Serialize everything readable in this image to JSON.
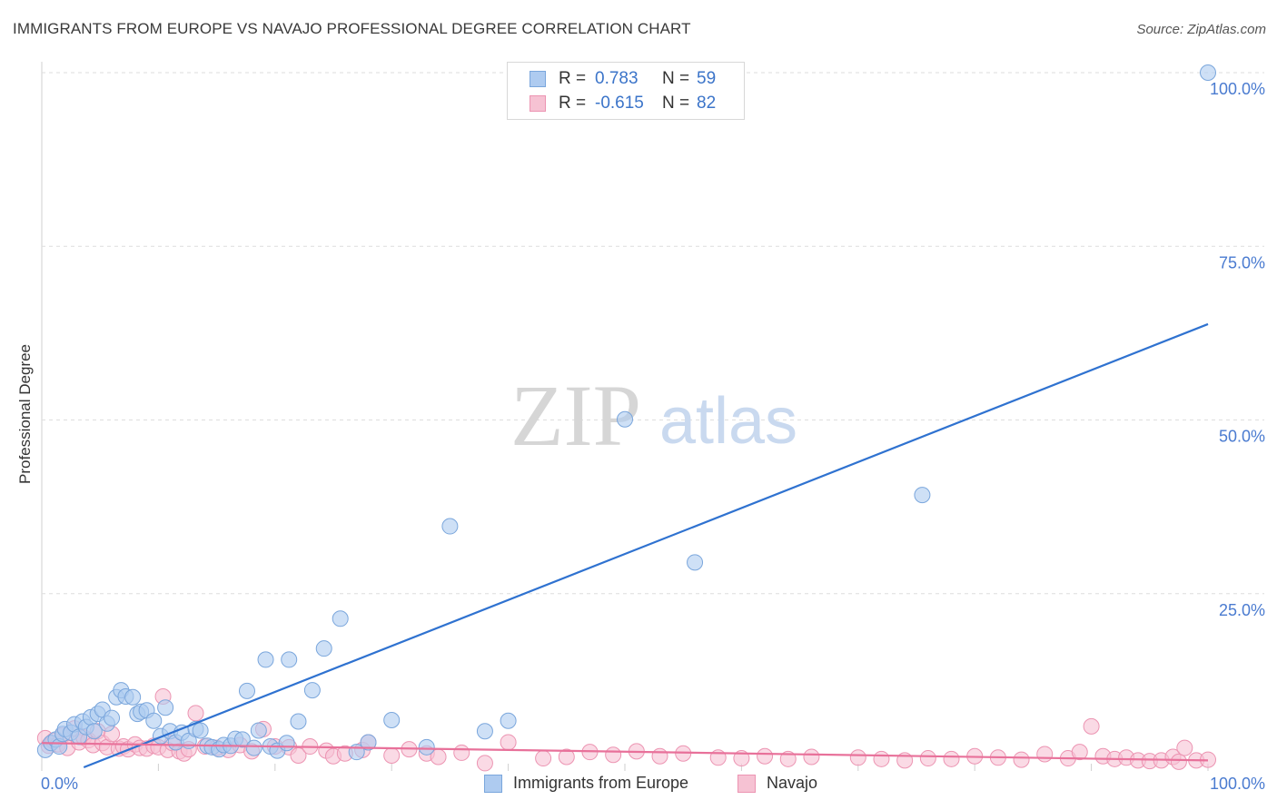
{
  "title": "IMMIGRANTS FROM EUROPE VS NAVAJO PROFESSIONAL DEGREE CORRELATION CHART",
  "source": "Source: ZipAtlas.com",
  "watermark": {
    "zip": "ZIP",
    "atlas": "atlas"
  },
  "legend": {
    "r_label": "R =",
    "n_label": "N =",
    "series": [
      {
        "name": "Immigrants from Europe",
        "r": "0.783",
        "n": "59"
      },
      {
        "name": "Navajo",
        "r": "-0.615",
        "n": "82"
      }
    ]
  },
  "colors": {
    "blue_fill": "#aecbf0",
    "blue_stroke": "#7aa6dc",
    "blue_line": "#2f72d0",
    "blue_text": "#3b74c9",
    "pink_fill": "#f6c2d3",
    "pink_stroke": "#ec94b2",
    "pink_line": "#e8719a",
    "grid": "#dedede",
    "axis_text": "#4a7bd0"
  },
  "chart_data": {
    "type": "scatter",
    "title": "IMMIGRANTS FROM EUROPE VS NAVAJO PROFESSIONAL DEGREE CORRELATION CHART",
    "xlabel": "",
    "ylabel": "Professional Degree",
    "xlim": [
      0,
      100
    ],
    "ylim": [
      0,
      100
    ],
    "x_tick_labels": [
      "0.0%",
      "100.0%"
    ],
    "y_tick_labels": [
      "25.0%",
      "50.0%",
      "75.0%",
      "100.0%"
    ],
    "y_ticks": [
      25,
      50,
      75,
      100
    ],
    "grid": true,
    "series": [
      {
        "name": "Immigrants from Europe",
        "r": 0.783,
        "n": 59,
        "trend": {
          "x": [
            3.6,
            100
          ],
          "y": [
            0,
            63.8
          ]
        },
        "points": [
          [
            0.3,
            2.5
          ],
          [
            0.8,
            3.5
          ],
          [
            1.2,
            4.0
          ],
          [
            1.5,
            3.0
          ],
          [
            1.8,
            4.8
          ],
          [
            2.0,
            5.5
          ],
          [
            2.5,
            5.0
          ],
          [
            2.8,
            6.2
          ],
          [
            3.2,
            4.4
          ],
          [
            3.5,
            6.6
          ],
          [
            3.8,
            5.8
          ],
          [
            4.2,
            7.2
          ],
          [
            4.5,
            5.2
          ],
          [
            4.8,
            7.7
          ],
          [
            5.2,
            8.3
          ],
          [
            5.6,
            6.3
          ],
          [
            6.0,
            7.1
          ],
          [
            6.4,
            10.1
          ],
          [
            6.8,
            11.1
          ],
          [
            7.2,
            10.2
          ],
          [
            7.8,
            10.1
          ],
          [
            8.2,
            7.7
          ],
          [
            8.5,
            8.0
          ],
          [
            9.0,
            8.2
          ],
          [
            9.6,
            6.7
          ],
          [
            10.2,
            4.5
          ],
          [
            10.6,
            8.6
          ],
          [
            11.0,
            5.2
          ],
          [
            11.5,
            3.6
          ],
          [
            12.0,
            5.0
          ],
          [
            12.6,
            3.8
          ],
          [
            13.2,
            5.5
          ],
          [
            13.6,
            5.3
          ],
          [
            14.2,
            3.1
          ],
          [
            14.6,
            2.9
          ],
          [
            15.2,
            2.6
          ],
          [
            15.6,
            3.2
          ],
          [
            16.2,
            3.1
          ],
          [
            16.6,
            4.1
          ],
          [
            17.2,
            4.0
          ],
          [
            17.6,
            11.0
          ],
          [
            18.2,
            2.8
          ],
          [
            18.6,
            5.3
          ],
          [
            19.2,
            15.5
          ],
          [
            19.6,
            3.0
          ],
          [
            20.2,
            2.4
          ],
          [
            21.0,
            3.5
          ],
          [
            21.2,
            15.5
          ],
          [
            22.0,
            6.6
          ],
          [
            23.2,
            11.1
          ],
          [
            24.2,
            17.1
          ],
          [
            25.6,
            21.4
          ],
          [
            27.0,
            2.2
          ],
          [
            28.0,
            3.6
          ],
          [
            30.0,
            6.8
          ],
          [
            33.0,
            2.9
          ],
          [
            35.0,
            34.7
          ],
          [
            38.0,
            5.2
          ],
          [
            40.0,
            6.7
          ],
          [
            50.0,
            50.1
          ],
          [
            56.0,
            29.5
          ],
          [
            75.5,
            39.2
          ],
          [
            100,
            100
          ]
        ]
      },
      {
        "name": "Navajo",
        "r": -0.615,
        "n": 82,
        "trend": {
          "x": [
            0,
            100
          ],
          "y": [
            3.5,
            1.0
          ]
        },
        "points": [
          [
            0.3,
            4.2
          ],
          [
            0.6,
            3.1
          ],
          [
            1.0,
            3.8
          ],
          [
            1.4,
            3.3
          ],
          [
            1.8,
            4.6
          ],
          [
            2.2,
            2.8
          ],
          [
            2.8,
            5.6
          ],
          [
            3.2,
            3.6
          ],
          [
            3.6,
            4.3
          ],
          [
            4.0,
            3.9
          ],
          [
            4.4,
            3.2
          ],
          [
            4.8,
            5.2
          ],
          [
            5.2,
            3.5
          ],
          [
            5.6,
            2.9
          ],
          [
            6.0,
            4.8
          ],
          [
            6.6,
            2.7
          ],
          [
            7.0,
            3.0
          ],
          [
            7.4,
            2.6
          ],
          [
            8.0,
            3.3
          ],
          [
            8.4,
            2.8
          ],
          [
            9.0,
            2.7
          ],
          [
            9.6,
            3.1
          ],
          [
            10.0,
            2.9
          ],
          [
            10.4,
            10.2
          ],
          [
            10.8,
            2.5
          ],
          [
            11.2,
            3.5
          ],
          [
            11.8,
            2.3
          ],
          [
            12.2,
            2.0
          ],
          [
            12.6,
            2.6
          ],
          [
            13.2,
            7.8
          ],
          [
            14.0,
            3.0
          ],
          [
            15.0,
            2.8
          ],
          [
            16.0,
            2.5
          ],
          [
            17.0,
            3.2
          ],
          [
            18.0,
            2.3
          ],
          [
            19.0,
            5.5
          ],
          [
            20.0,
            3.0
          ],
          [
            21.2,
            2.9
          ],
          [
            22.0,
            1.7
          ],
          [
            23.0,
            3.0
          ],
          [
            24.4,
            2.4
          ],
          [
            25.0,
            1.6
          ],
          [
            26.0,
            2.0
          ],
          [
            27.5,
            2.5
          ],
          [
            28.0,
            3.6
          ],
          [
            30.0,
            1.7
          ],
          [
            31.5,
            2.6
          ],
          [
            33.0,
            2.0
          ],
          [
            34.0,
            1.5
          ],
          [
            36.0,
            2.1
          ],
          [
            38.0,
            0.6
          ],
          [
            40.0,
            3.6
          ],
          [
            43.0,
            1.3
          ],
          [
            45.0,
            1.5
          ],
          [
            47.0,
            2.2
          ],
          [
            49.0,
            1.8
          ],
          [
            51.0,
            2.3
          ],
          [
            53.0,
            1.6
          ],
          [
            55.0,
            2.0
          ],
          [
            58.0,
            1.4
          ],
          [
            60.0,
            1.3
          ],
          [
            62.0,
            1.6
          ],
          [
            64.0,
            1.2
          ],
          [
            66.0,
            1.5
          ],
          [
            70.0,
            1.4
          ],
          [
            72.0,
            1.2
          ],
          [
            74.0,
            1.0
          ],
          [
            76.0,
            1.3
          ],
          [
            78.0,
            1.2
          ],
          [
            80.0,
            1.6
          ],
          [
            82.0,
            1.4
          ],
          [
            84.0,
            1.1
          ],
          [
            86.0,
            1.9
          ],
          [
            88.0,
            1.3
          ],
          [
            89.0,
            2.2
          ],
          [
            90.0,
            5.9
          ],
          [
            91.0,
            1.6
          ],
          [
            92.0,
            1.2
          ],
          [
            93.0,
            1.4
          ],
          [
            94.0,
            1.0
          ],
          [
            95.0,
            0.9
          ],
          [
            96.0,
            1.0
          ],
          [
            97.0,
            1.5
          ],
          [
            97.5,
            0.8
          ],
          [
            98.0,
            2.8
          ],
          [
            99.0,
            1.0
          ],
          [
            100,
            1.1
          ]
        ]
      }
    ]
  }
}
